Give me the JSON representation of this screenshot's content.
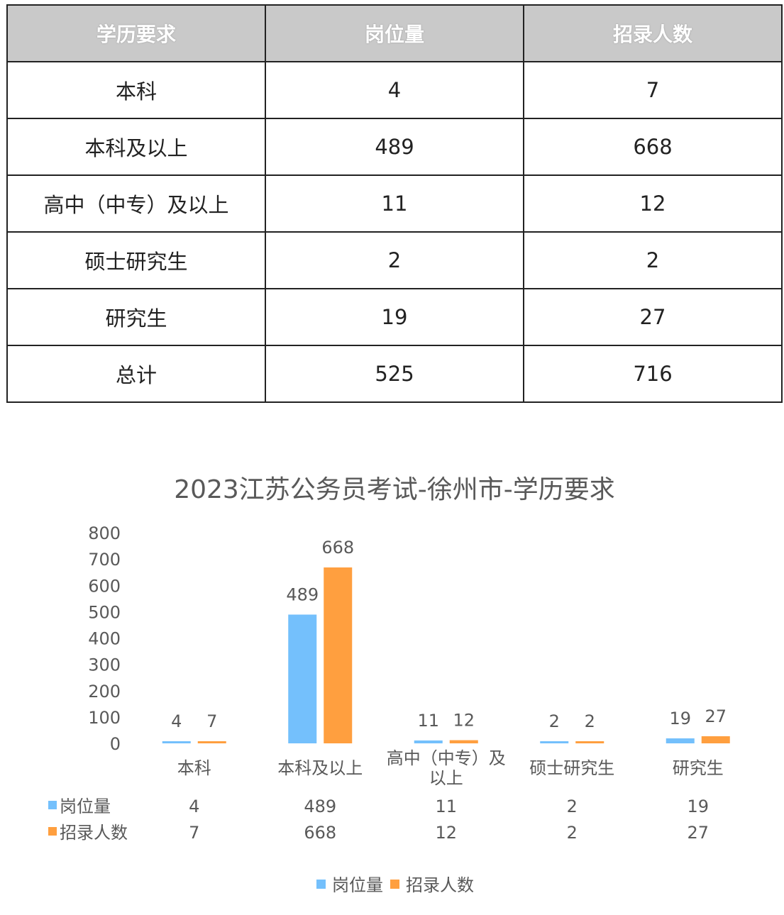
{
  "table": {
    "headers": [
      "学历要求",
      "岗位量",
      "招录人数"
    ],
    "rows": [
      [
        "本科",
        "4",
        "7"
      ],
      [
        "本科及以上",
        "489",
        "668"
      ],
      [
        "高中（中专）及以上",
        "11",
        "12"
      ],
      [
        "硕士研究生",
        "2",
        "2"
      ],
      [
        "研究生",
        "19",
        "27"
      ],
      [
        "总计",
        "525",
        "716"
      ]
    ]
  },
  "chart_data": {
    "type": "bar",
    "title": "2023江苏公务员考试-徐州市-学历要求",
    "categories": [
      "本科",
      "本科及以上",
      "高中（中专）及以上",
      "硕士研究生",
      "研究生"
    ],
    "category_lines": [
      [
        "本科"
      ],
      [
        "本科及以上"
      ],
      [
        "高中（中专）及",
        "以上"
      ],
      [
        "硕士研究生"
      ],
      [
        "研究生"
      ]
    ],
    "series": [
      {
        "name": "岗位量",
        "values": [
          4,
          489,
          11,
          2,
          19
        ],
        "color": "#74c0fc"
      },
      {
        "name": "招录人数",
        "values": [
          7,
          668,
          12,
          2,
          27
        ],
        "color": "#ff9f3f"
      }
    ],
    "ylim": [
      0,
      800
    ],
    "yticks": [
      0,
      100,
      200,
      300,
      400,
      500,
      600,
      700,
      800
    ],
    "grid": false,
    "legend": "bottom",
    "data_table": true
  }
}
